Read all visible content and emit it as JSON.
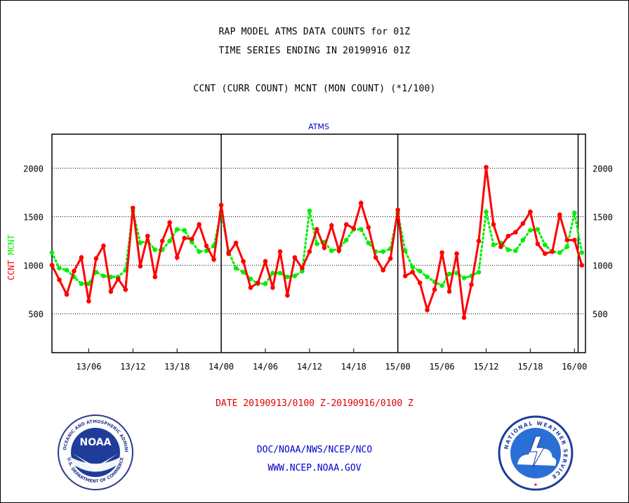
{
  "header": {
    "line1": "RAP MODEL ATMS DATA COUNTS for 01Z",
    "line2": "TIME SERIES ENDING IN 20190916 01Z",
    "line3": "CCNT (CURR COUNT) MCNT (MON COUNT) (*1/100)"
  },
  "footer": {
    "date_range": "DATE 20190913/0100 Z-20190916/0100 Z",
    "org": "DOC/NOAA/NWS/NCEP/NCO",
    "url": "WWW.NCEP.NOAA.GOV"
  },
  "logos": {
    "noaa": {
      "center_text": "NOAA",
      "ring_top": "NATIONAL OCEANIC AND ATMOSPHERIC ADMINISTRATION",
      "ring_bottom": "U.S. DEPARTMENT OF COMMERCE"
    },
    "nws": {
      "ring_text": "NATIONAL WEATHER SERVICE"
    }
  },
  "colors": {
    "ccnt": "#ff0000",
    "mcnt": "#00ee00",
    "title": "#0000cc",
    "grid": "#000000"
  },
  "chart_data": {
    "type": "line",
    "title": "ATMS",
    "ylabel_parts": [
      {
        "text": "CCNT",
        "color": "#ff0000"
      },
      {
        "text": "MCNT",
        "color": "#00ee00"
      }
    ],
    "ylim": [
      100,
      2350
    ],
    "yticks": [
      500,
      1000,
      1500,
      2000
    ],
    "ytick_labels": [
      "500",
      "1000",
      "1500",
      "2000"
    ],
    "xlim": [
      0,
      72.5
    ],
    "xticks": [
      5,
      11,
      17,
      23,
      29,
      35,
      41,
      47,
      53,
      59,
      65,
      71
    ],
    "xtick_labels": [
      "13/06",
      "13/12",
      "13/18",
      "14/00",
      "14/06",
      "14/12",
      "14/18",
      "15/00",
      "15/06",
      "15/12",
      "15/18",
      "16/00"
    ],
    "day_boundaries": [
      23,
      47,
      71.5
    ],
    "grid": "horizontal dotted",
    "series": [
      {
        "name": "CCNT",
        "color": "#ff0000",
        "style": "solid",
        "values": [
          1000,
          850,
          700,
          940,
          1080,
          630,
          1070,
          1200,
          730,
          860,
          750,
          1590,
          990,
          1300,
          880,
          1250,
          1440,
          1080,
          1280,
          1270,
          1420,
          1200,
          1060,
          1620,
          1120,
          1230,
          1040,
          770,
          820,
          1040,
          770,
          1140,
          690,
          1080,
          970,
          1140,
          1370,
          1180,
          1410,
          1150,
          1420,
          1380,
          1640,
          1390,
          1080,
          950,
          1070,
          1570,
          890,
          930,
          820,
          540,
          750,
          1130,
          730,
          1120,
          460,
          800,
          1250,
          2010,
          1420,
          1190,
          1300,
          1340,
          1430,
          1550,
          1220,
          1120,
          1140,
          1520,
          1260,
          1260,
          1000
        ]
      },
      {
        "name": "MCNT",
        "color": "#00ee00",
        "style": "dotted",
        "values": [
          1130,
          970,
          950,
          880,
          810,
          810,
          930,
          890,
          880,
          880,
          950,
          1560,
          1230,
          1250,
          1160,
          1160,
          1250,
          1370,
          1360,
          1240,
          1140,
          1150,
          1200,
          1550,
          1140,
          970,
          930,
          860,
          810,
          810,
          920,
          920,
          880,
          890,
          940,
          1560,
          1220,
          1240,
          1150,
          1170,
          1260,
          1370,
          1370,
          1230,
          1140,
          1140,
          1170,
          1540,
          1150,
          980,
          940,
          880,
          830,
          790,
          910,
          920,
          870,
          890,
          930,
          1550,
          1210,
          1230,
          1160,
          1150,
          1260,
          1360,
          1370,
          1210,
          1140,
          1130,
          1190,
          1540,
          1130
        ]
      }
    ]
  }
}
